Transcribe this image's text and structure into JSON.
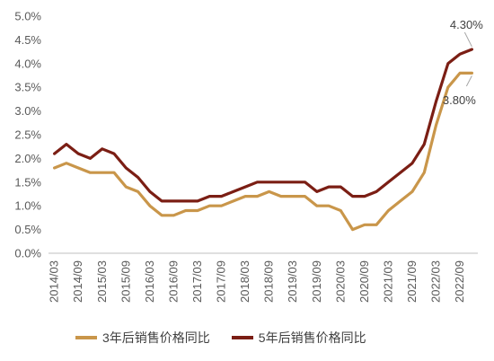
{
  "chart_data": {
    "type": "line",
    "title": "",
    "xlabel": "",
    "ylabel": "",
    "ylim": [
      0,
      5
    ],
    "yticks": [
      "0.0%",
      "0.5%",
      "1.0%",
      "1.5%",
      "2.0%",
      "2.5%",
      "3.0%",
      "3.5%",
      "4.0%",
      "4.5%",
      "5.0%"
    ],
    "grid": false,
    "legend_position": "bottom",
    "x": [
      "2014/03",
      "2014/06",
      "2014/09",
      "2014/12",
      "2015/03",
      "2015/06",
      "2015/09",
      "2015/12",
      "2016/03",
      "2016/06",
      "2016/09",
      "2016/12",
      "2017/03",
      "2017/06",
      "2017/09",
      "2017/12",
      "2018/03",
      "2018/06",
      "2018/09",
      "2018/12",
      "2019/03",
      "2019/06",
      "2019/09",
      "2019/12",
      "2020/03",
      "2020/06",
      "2020/09",
      "2020/12",
      "2021/03",
      "2021/06",
      "2021/09",
      "2021/12",
      "2022/03",
      "2022/06",
      "2022/09",
      "2022/12"
    ],
    "xticks": [
      "2014/03",
      "2014/09",
      "2015/03",
      "2015/09",
      "2016/03",
      "2016/09",
      "2017/03",
      "2017/09",
      "2018/03",
      "2018/09",
      "2019/03",
      "2019/09",
      "2020/03",
      "2020/09",
      "2021/03",
      "2021/09",
      "2022/03",
      "2022/09"
    ],
    "series": [
      {
        "name": "3年后销售价格同比",
        "color": "#C9964A",
        "values": [
          1.8,
          1.9,
          1.8,
          1.7,
          1.7,
          1.7,
          1.4,
          1.3,
          1.0,
          0.8,
          0.8,
          0.9,
          0.9,
          1.0,
          1.0,
          1.1,
          1.2,
          1.2,
          1.3,
          1.2,
          1.2,
          1.2,
          1.0,
          1.0,
          0.9,
          0.5,
          0.6,
          0.6,
          0.9,
          1.1,
          1.3,
          1.7,
          2.7,
          3.5,
          3.8,
          3.8
        ]
      },
      {
        "name": "5年后销售价格同比",
        "color": "#7B1E14",
        "values": [
          2.1,
          2.3,
          2.1,
          2.0,
          2.2,
          2.1,
          1.8,
          1.6,
          1.3,
          1.1,
          1.1,
          1.1,
          1.1,
          1.2,
          1.2,
          1.3,
          1.4,
          1.5,
          1.5,
          1.5,
          1.5,
          1.5,
          1.3,
          1.4,
          1.4,
          1.2,
          1.2,
          1.3,
          1.5,
          1.7,
          1.9,
          2.3,
          3.2,
          4.0,
          4.2,
          4.3
        ]
      }
    ],
    "annotations": [
      {
        "series": 1,
        "text": "4.30%"
      },
      {
        "series": 0,
        "text": "3.80%"
      }
    ]
  }
}
